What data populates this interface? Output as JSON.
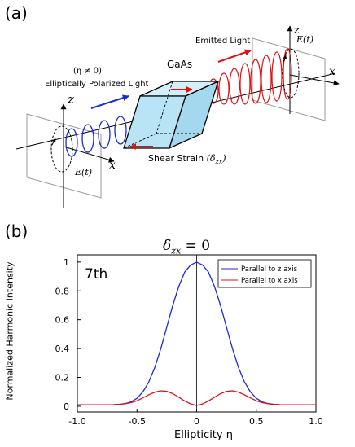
{
  "figure": {
    "panel_a_label": "(a)",
    "panel_b_label": "(b)"
  },
  "diagram": {
    "material": "GaAs",
    "emitted_light": "Emitted Light",
    "eta_condition": "(η ≠ 0)",
    "input_light": "Elliptically Polarized Light",
    "shear_strain": "Shear Strain",
    "shear_symbol": "(δ",
    "shear_sub": "zx",
    "shear_close": ")",
    "field_label": "E(t)",
    "axis_z": "z",
    "axis_x": "x",
    "colors": {
      "input": "#1a2bd6",
      "output": "#e01010",
      "crystal": "#b8e4f6"
    }
  },
  "chart_data": {
    "type": "line",
    "title": "δ_zx = 0",
    "title_main": "δ",
    "title_sub": "zx",
    "title_rest": " = 0",
    "annotation": "7th",
    "xlabel": "Ellipticity η",
    "ylabel": "Normalized Harmonic Intensity",
    "xlim": [
      -1.0,
      1.0
    ],
    "ylim": [
      -0.04,
      1.05
    ],
    "xticks": [
      "-1.0",
      "-0.5",
      "0",
      "0.5",
      "1.0"
    ],
    "yticks": [
      "0",
      "0.2",
      "0.4",
      "0.6",
      "0.8",
      "1"
    ],
    "legend_position": "top-right",
    "x": [
      -1.0,
      -0.95,
      -0.9,
      -0.85,
      -0.8,
      -0.75,
      -0.7,
      -0.65,
      -0.6,
      -0.55,
      -0.5,
      -0.45,
      -0.4,
      -0.35,
      -0.3,
      -0.25,
      -0.2,
      -0.15,
      -0.1,
      -0.05,
      0.0,
      0.05,
      0.1,
      0.15,
      0.2,
      0.25,
      0.3,
      0.35,
      0.4,
      0.45,
      0.5,
      0.55,
      0.6,
      0.65,
      0.7,
      0.75,
      0.8,
      0.85,
      0.9,
      0.95,
      1.0
    ],
    "series": [
      {
        "name": "Parallel to z axis",
        "color": "#1a2bd6",
        "values": [
          0.01,
          0.01,
          0.01,
          0.01,
          0.01,
          0.01,
          0.011,
          0.013,
          0.018,
          0.03,
          0.055,
          0.1,
          0.17,
          0.27,
          0.4,
          0.55,
          0.7,
          0.83,
          0.93,
          0.98,
          1.0,
          0.98,
          0.93,
          0.83,
          0.7,
          0.55,
          0.4,
          0.27,
          0.17,
          0.1,
          0.055,
          0.03,
          0.018,
          0.013,
          0.011,
          0.01,
          0.01,
          0.01,
          0.01,
          0.01,
          0.01
        ]
      },
      {
        "name": "Parallel to x axis",
        "color": "#e01010",
        "values": [
          0.01,
          0.01,
          0.01,
          0.01,
          0.01,
          0.01,
          0.011,
          0.013,
          0.017,
          0.025,
          0.038,
          0.058,
          0.08,
          0.098,
          0.107,
          0.103,
          0.087,
          0.063,
          0.037,
          0.016,
          0.005,
          0.016,
          0.037,
          0.063,
          0.087,
          0.103,
          0.107,
          0.098,
          0.08,
          0.058,
          0.038,
          0.025,
          0.017,
          0.013,
          0.011,
          0.01,
          0.01,
          0.01,
          0.01,
          0.01,
          0.01
        ]
      }
    ]
  }
}
